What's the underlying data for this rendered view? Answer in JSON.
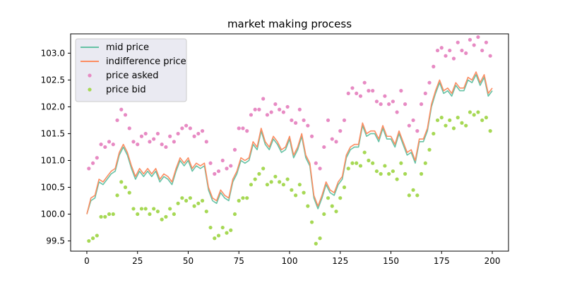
{
  "chart_data": {
    "type": "line",
    "title": "market making process",
    "xlabel": "",
    "ylabel": "",
    "xlim": [
      -8,
      208
    ],
    "ylim": [
      99.31,
      103.36
    ],
    "grid": false,
    "legend_position": "upper-left",
    "x_ticks": [
      0,
      25,
      50,
      75,
      100,
      125,
      150,
      175,
      200
    ],
    "y_ticks": [
      99.5,
      100.0,
      100.5,
      101.0,
      101.5,
      102.0,
      102.5,
      103.0
    ],
    "x_tick_labels": [
      "0",
      "25",
      "50",
      "75",
      "100",
      "125",
      "150",
      "175",
      "200"
    ],
    "y_tick_labels": [
      "99.5",
      "100.0",
      "100.5",
      "101.0",
      "101.5",
      "102.0",
      "102.5",
      "103.0"
    ],
    "series": [
      {
        "name": "mid price",
        "kind": "line",
        "color": "#66c2a5",
        "x": [
          0,
          2,
          4,
          6,
          8,
          10,
          12,
          14,
          16,
          18,
          20,
          22,
          24,
          26,
          28,
          30,
          32,
          34,
          36,
          38,
          40,
          42,
          44,
          46,
          48,
          50,
          52,
          54,
          56,
          58,
          60,
          62,
          64,
          66,
          68,
          70,
          72,
          74,
          76,
          78,
          80,
          82,
          84,
          86,
          88,
          90,
          92,
          94,
          96,
          98,
          100,
          102,
          104,
          106,
          108,
          110,
          112,
          114,
          116,
          118,
          120,
          122,
          124,
          126,
          128,
          130,
          132,
          134,
          136,
          138,
          140,
          142,
          144,
          146,
          148,
          150,
          152,
          154,
          156,
          158,
          160,
          162,
          164,
          166,
          168,
          170,
          172,
          174,
          176,
          178,
          180,
          182,
          184,
          186,
          188,
          190,
          192,
          194,
          196,
          198,
          200
        ],
        "values": [
          100.0,
          100.25,
          100.3,
          100.6,
          100.55,
          100.65,
          100.75,
          100.8,
          101.1,
          101.25,
          101.1,
          100.85,
          100.65,
          100.8,
          100.7,
          100.8,
          100.7,
          100.8,
          100.6,
          100.7,
          100.65,
          100.55,
          100.8,
          101.0,
          100.9,
          101.0,
          100.8,
          100.9,
          100.85,
          100.9,
          100.45,
          100.25,
          100.2,
          100.4,
          100.3,
          100.25,
          100.6,
          100.75,
          101.0,
          100.95,
          101.0,
          101.3,
          101.2,
          101.55,
          101.3,
          101.2,
          101.4,
          101.3,
          101.15,
          101.2,
          101.4,
          101.05,
          101.2,
          101.45,
          101.05,
          100.9,
          100.3,
          100.1,
          100.3,
          100.55,
          100.4,
          100.35,
          100.55,
          100.65,
          101.05,
          101.2,
          101.25,
          101.25,
          101.65,
          101.45,
          101.5,
          101.5,
          101.35,
          101.6,
          101.4,
          101.4,
          101.25,
          101.5,
          101.3,
          101.1,
          101.15,
          100.95,
          101.35,
          101.35,
          101.55,
          102.0,
          102.25,
          102.45,
          102.25,
          102.3,
          102.2,
          102.4,
          102.3,
          102.3,
          102.5,
          102.45,
          102.6,
          102.4,
          102.55,
          102.2,
          102.3
        ]
      },
      {
        "name": "indifference price",
        "kind": "line",
        "color": "#fc8d62",
        "x": [
          0,
          2,
          4,
          6,
          8,
          10,
          12,
          14,
          16,
          18,
          20,
          22,
          24,
          26,
          28,
          30,
          32,
          34,
          36,
          38,
          40,
          42,
          44,
          46,
          48,
          50,
          52,
          54,
          56,
          58,
          60,
          62,
          64,
          66,
          68,
          70,
          72,
          74,
          76,
          78,
          80,
          82,
          84,
          86,
          88,
          90,
          92,
          94,
          96,
          98,
          100,
          102,
          104,
          106,
          108,
          110,
          112,
          114,
          116,
          118,
          120,
          122,
          124,
          126,
          128,
          130,
          132,
          134,
          136,
          138,
          140,
          142,
          144,
          146,
          148,
          150,
          152,
          154,
          156,
          158,
          160,
          162,
          164,
          166,
          168,
          170,
          172,
          174,
          176,
          178,
          180,
          182,
          184,
          186,
          188,
          190,
          192,
          194,
          196,
          198,
          200
        ],
        "values": [
          100.0,
          100.3,
          100.35,
          100.65,
          100.6,
          100.7,
          100.8,
          100.85,
          101.15,
          101.3,
          101.15,
          100.9,
          100.7,
          100.85,
          100.75,
          100.85,
          100.75,
          100.85,
          100.65,
          100.75,
          100.7,
          100.6,
          100.85,
          101.05,
          100.95,
          101.05,
          100.85,
          100.95,
          100.9,
          100.95,
          100.5,
          100.3,
          100.25,
          100.45,
          100.35,
          100.3,
          100.65,
          100.8,
          101.05,
          101.0,
          101.05,
          101.35,
          101.25,
          101.6,
          101.35,
          101.25,
          101.45,
          101.35,
          101.2,
          101.25,
          101.45,
          101.1,
          101.25,
          101.5,
          101.1,
          100.95,
          100.35,
          100.15,
          100.35,
          100.6,
          100.45,
          100.4,
          100.6,
          100.7,
          101.1,
          101.25,
          101.3,
          101.3,
          101.7,
          101.5,
          101.55,
          101.55,
          101.4,
          101.65,
          101.45,
          101.45,
          101.3,
          101.55,
          101.35,
          101.15,
          101.2,
          101.0,
          101.4,
          101.4,
          101.6,
          102.05,
          102.3,
          102.5,
          102.3,
          102.35,
          102.25,
          102.45,
          102.35,
          102.35,
          102.55,
          102.5,
          102.65,
          102.45,
          102.6,
          102.25,
          102.35
        ]
      },
      {
        "name": "price asked",
        "kind": "scatter",
        "color": "#e78ac3",
        "x": [
          1,
          3,
          5,
          7,
          9,
          11,
          13,
          15,
          17,
          19,
          21,
          23,
          25,
          27,
          29,
          31,
          33,
          35,
          37,
          39,
          41,
          43,
          45,
          47,
          49,
          51,
          53,
          55,
          57,
          59,
          61,
          63,
          65,
          67,
          69,
          71,
          73,
          75,
          77,
          79,
          81,
          83,
          85,
          87,
          89,
          91,
          93,
          95,
          97,
          99,
          101,
          103,
          105,
          107,
          109,
          111,
          113,
          115,
          117,
          119,
          121,
          123,
          125,
          127,
          129,
          131,
          133,
          135,
          137,
          139,
          141,
          143,
          145,
          147,
          149,
          151,
          153,
          155,
          157,
          159,
          161,
          163,
          165,
          167,
          169,
          171,
          173,
          175,
          177,
          179,
          181,
          183,
          185,
          187,
          189,
          191,
          193,
          195,
          197,
          199
        ],
        "values": [
          100.85,
          100.95,
          101.05,
          101.3,
          101.25,
          101.35,
          101.3,
          101.75,
          101.95,
          101.85,
          101.6,
          101.35,
          101.3,
          101.45,
          101.5,
          101.35,
          101.4,
          101.5,
          101.3,
          101.25,
          101.45,
          101.35,
          101.5,
          101.6,
          101.65,
          101.6,
          101.45,
          101.5,
          101.55,
          101.35,
          100.95,
          100.75,
          100.8,
          101.0,
          100.85,
          100.9,
          101.2,
          101.6,
          101.6,
          101.55,
          101.85,
          101.95,
          101.95,
          102.15,
          101.85,
          101.9,
          102.05,
          101.95,
          101.9,
          102.0,
          101.75,
          101.7,
          101.95,
          101.75,
          101.65,
          101.45,
          100.95,
          100.85,
          101.25,
          101.75,
          101.4,
          101.35,
          101.55,
          101.75,
          102.25,
          102.35,
          102.25,
          102.2,
          102.45,
          102.3,
          102.3,
          102.1,
          102.05,
          102.2,
          102.05,
          102.1,
          101.9,
          102.3,
          102.05,
          101.65,
          101.75,
          101.55,
          102.05,
          102.25,
          102.45,
          102.75,
          103.05,
          103.1,
          102.95,
          103.05,
          102.9,
          103.2,
          103.05,
          103.0,
          103.25,
          103.15,
          103.3,
          103.05,
          103.2,
          102.95
        ]
      },
      {
        "name": "price bid",
        "kind": "scatter",
        "color": "#a6d854",
        "x": [
          1,
          3,
          5,
          7,
          9,
          11,
          13,
          15,
          17,
          19,
          21,
          23,
          25,
          27,
          29,
          31,
          33,
          35,
          37,
          39,
          41,
          43,
          45,
          47,
          49,
          51,
          53,
          55,
          57,
          59,
          61,
          63,
          65,
          67,
          69,
          71,
          73,
          75,
          77,
          79,
          81,
          83,
          85,
          87,
          89,
          91,
          93,
          95,
          97,
          99,
          101,
          103,
          105,
          107,
          109,
          111,
          113,
          115,
          117,
          119,
          121,
          123,
          125,
          127,
          129,
          131,
          133,
          135,
          137,
          139,
          141,
          143,
          145,
          147,
          149,
          151,
          153,
          155,
          157,
          159,
          161,
          163,
          165,
          167,
          169,
          171,
          173,
          175,
          177,
          179,
          181,
          183,
          185,
          187,
          189,
          191,
          193,
          195,
          197,
          199
        ],
        "values": [
          99.5,
          99.55,
          99.6,
          99.95,
          99.95,
          100.0,
          100.0,
          100.35,
          100.6,
          100.5,
          100.4,
          100.1,
          100.0,
          100.1,
          100.1,
          100.0,
          100.1,
          100.05,
          99.9,
          99.95,
          100.1,
          100.0,
          100.2,
          100.3,
          100.25,
          100.3,
          100.15,
          100.2,
          100.25,
          100.05,
          99.75,
          99.55,
          99.6,
          99.75,
          99.65,
          99.7,
          100.0,
          100.25,
          100.3,
          100.3,
          100.55,
          100.65,
          100.75,
          100.85,
          100.55,
          100.6,
          100.7,
          100.6,
          100.55,
          100.65,
          100.45,
          100.35,
          100.55,
          100.4,
          100.15,
          99.85,
          99.45,
          99.55,
          100.0,
          100.3,
          100.15,
          100.05,
          100.3,
          100.5,
          100.85,
          100.95,
          100.95,
          100.9,
          101.15,
          101.0,
          100.95,
          100.8,
          100.75,
          100.9,
          100.75,
          100.8,
          100.65,
          100.95,
          100.75,
          100.35,
          100.45,
          100.35,
          100.75,
          100.95,
          101.2,
          101.5,
          101.75,
          101.8,
          101.65,
          101.75,
          101.6,
          101.8,
          101.7,
          101.65,
          101.9,
          101.85,
          101.9,
          101.75,
          101.8,
          101.55
        ]
      }
    ]
  }
}
